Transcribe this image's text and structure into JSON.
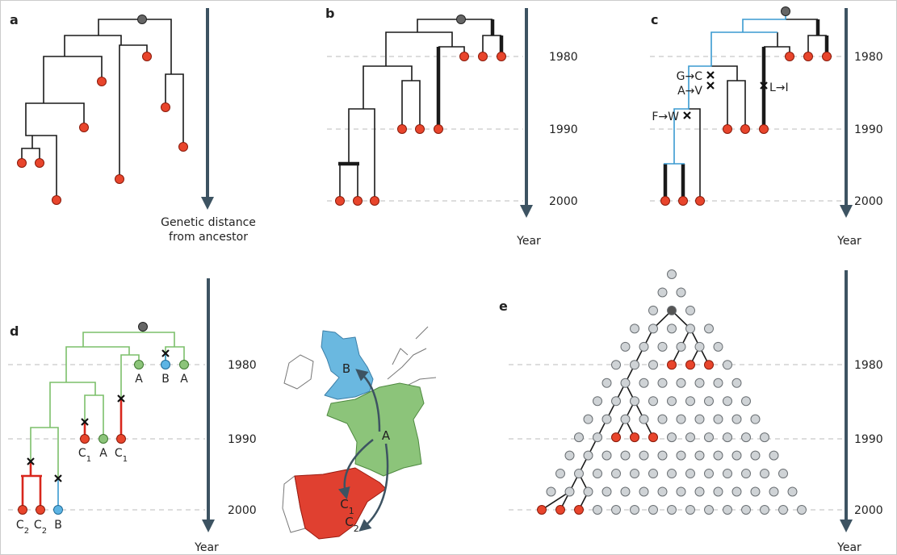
{
  "panels": {
    "a": {
      "label": "a",
      "axis_label": [
        "Genetic distance",
        "from ancestor"
      ]
    },
    "b": {
      "label": "b",
      "years": [
        "1980",
        "1990",
        "2000"
      ],
      "axis_label": "Year"
    },
    "c": {
      "label": "c",
      "years": [
        "1980",
        "1990",
        "2000"
      ],
      "axis_label": "Year",
      "mutations": [
        "G→C",
        "A→V",
        "L→I",
        "F→W"
      ]
    },
    "d": {
      "label": "d",
      "years": [
        "1980",
        "1990",
        "2000"
      ],
      "axis_label": "Year",
      "tips": [
        {
          "text": "A"
        },
        {
          "text": "B"
        },
        {
          "text": "A"
        },
        {
          "text": "C",
          "sub": "1"
        },
        {
          "text": "A"
        },
        {
          "text": "C",
          "sub": "1"
        },
        {
          "text": "C",
          "sub": "2"
        },
        {
          "text": "C",
          "sub": "2"
        },
        {
          "text": "B"
        }
      ],
      "map": [
        {
          "text": "B"
        },
        {
          "text": "A"
        },
        {
          "text": "C",
          "sub": "1"
        },
        {
          "text": "C",
          "sub": "2"
        }
      ]
    },
    "e": {
      "label": "e",
      "years": [
        "1980",
        "1990",
        "2000"
      ],
      "axis_label": "Year"
    }
  }
}
